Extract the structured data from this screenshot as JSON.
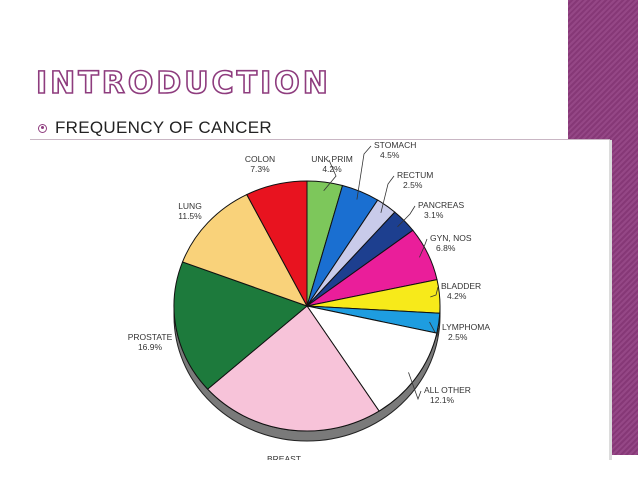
{
  "slide": {
    "title": "INTRODUCTION",
    "bullet": "FREQUENCY OF CANCER",
    "accent_color": "#8e3c7e"
  },
  "chart_data": {
    "type": "pie",
    "title": "",
    "slices": [
      {
        "label": "UNK PRIM",
        "value": 4.2,
        "display": "4.2%",
        "color": "#7dc75b"
      },
      {
        "label": "STOMACH",
        "value": 4.5,
        "display": "4.5%",
        "color": "#1a6fd1"
      },
      {
        "label": "RECTUM",
        "value": 2.5,
        "display": "2.5%",
        "color": "#c9cbea"
      },
      {
        "label": "PANCREAS",
        "value": 3.1,
        "display": "3.1%",
        "color": "#1d3f8f"
      },
      {
        "label": "GYN, NOS",
        "value": 6.8,
        "display": "6.8%",
        "color": "#ea1e9a"
      },
      {
        "label": "BLADDER",
        "value": 4.2,
        "display": "4.2%",
        "color": "#f7ea1a"
      },
      {
        "label": "LYMPHOMA",
        "value": 2.5,
        "display": "2.5%",
        "color": "#1e9de0"
      },
      {
        "label": "ALL OTHER",
        "value": 12.1,
        "display": "12.1%",
        "color": "#ffffff"
      },
      {
        "label": "BREAST",
        "value": 22.0,
        "display": "",
        "color": "#f7c3d9"
      },
      {
        "label": "PROSTATE",
        "value": 16.9,
        "display": "16.9%",
        "color": "#1d7a3c"
      },
      {
        "label": "LUNG",
        "value": 11.5,
        "display": "11.5%",
        "color": "#f9d27a"
      },
      {
        "label": "COLON",
        "value": 7.3,
        "display": "7.3%",
        "color": "#e8131f"
      }
    ]
  }
}
